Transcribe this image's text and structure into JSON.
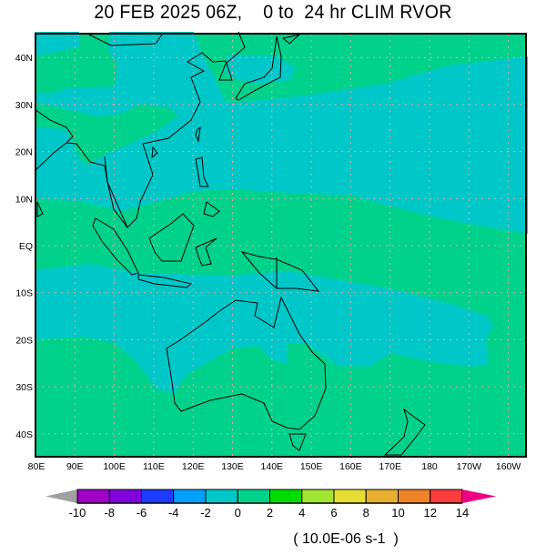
{
  "title": "20 FEB 2025 06Z,    0 to  24 hr CLIM RVOR",
  "map": {
    "lon_range": [
      "80E",
      "156W"
    ],
    "lat_range": [
      "45S",
      "45N"
    ],
    "x_ticks": [
      "80E",
      "90E",
      "100E",
      "110E",
      "120E",
      "130E",
      "140E",
      "150E",
      "160E",
      "170E",
      "180",
      "170W",
      "160W"
    ],
    "y_ticks": [
      "40N",
      "30N",
      "20N",
      "10N",
      "EQ",
      "10S",
      "20S",
      "30S",
      "40S"
    ],
    "grid": true,
    "field_colors": {
      "0_to_2": "#00c8c8",
      "2_to_4": "#00d28c"
    }
  },
  "colorbar": {
    "labels": [
      "-10",
      "-8",
      "-6",
      "-4",
      "-2",
      "0",
      "2",
      "4",
      "6",
      "8",
      "10",
      "12",
      "14"
    ],
    "colors": [
      "#a0a0a0",
      "#a000c8",
      "#8200dc",
      "#1e3cff",
      "#00a0ff",
      "#00c8c8",
      "#00d28c",
      "#00dc00",
      "#a0e632",
      "#e6dc32",
      "#e6af2d",
      "#f08228",
      "#fa3c3c",
      "#f00082"
    ],
    "units": "( 10.0E-06 s-1  )"
  }
}
